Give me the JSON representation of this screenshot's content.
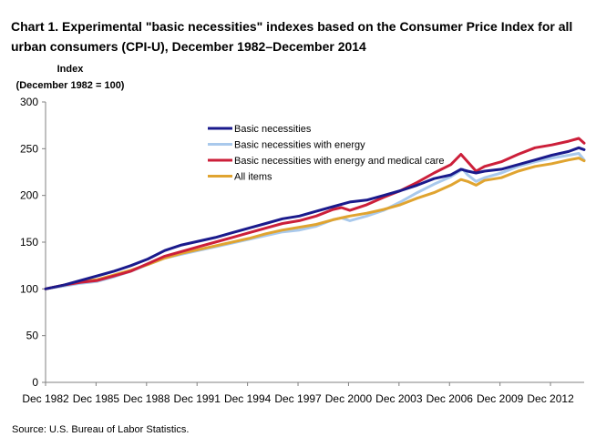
{
  "title": "Chart 1. Experimental  \"basic necessities\" indexes based on the Consumer Price Index for all urban consumers (CPI-U), December 1982–December 2014",
  "source": "Source: U.S. Bureau of Labor Statistics.",
  "chart_data": {
    "type": "line",
    "title": "Chart 1. Experimental  \"basic necessities\" indexes based on the Consumer Price Index for all urban consumers (CPI-U), December 1982–December 2014",
    "ylabel": [
      "Index",
      "(December 1982 = 100)"
    ],
    "xlabel": "",
    "ylim": [
      0,
      300
    ],
    "xlim": [
      1982.92,
      2014.92
    ],
    "yticks": [
      0,
      50,
      100,
      150,
      200,
      250,
      300
    ],
    "xtick_labels": [
      "Dec 1982",
      "Dec 1985",
      "Dec 1988",
      "Dec 1991",
      "Dec 1994",
      "Dec 1997",
      "Dec 2000",
      "Dec 2003",
      "Dec 2006",
      "Dec 2009",
      "Dec 2012"
    ],
    "xtick_years": [
      1982.92,
      1985.92,
      1988.92,
      1991.92,
      1994.92,
      1997.92,
      2000.92,
      2003.92,
      2006.92,
      2009.92,
      2012.92
    ],
    "grid": false,
    "legend_position": "top-center",
    "series": [
      {
        "name": "Basic necessities",
        "color": "#1a1a8c",
        "points": [
          [
            1982.92,
            100
          ],
          [
            1984,
            104
          ],
          [
            1985,
            109
          ],
          [
            1986,
            114
          ],
          [
            1987,
            119
          ],
          [
            1988,
            125
          ],
          [
            1989,
            132
          ],
          [
            1990,
            141
          ],
          [
            1991,
            147
          ],
          [
            1992,
            151
          ],
          [
            1993,
            155
          ],
          [
            1994,
            160
          ],
          [
            1995,
            165
          ],
          [
            1996,
            170
          ],
          [
            1997,
            175
          ],
          [
            1998,
            178
          ],
          [
            1999,
            183
          ],
          [
            2000,
            188
          ],
          [
            2001,
            193
          ],
          [
            2002,
            195
          ],
          [
            2003,
            200
          ],
          [
            2004,
            205
          ],
          [
            2005,
            211
          ],
          [
            2006,
            218
          ],
          [
            2007,
            222
          ],
          [
            2007.6,
            228
          ],
          [
            2008,
            226
          ],
          [
            2008.5,
            224
          ],
          [
            2009,
            226
          ],
          [
            2010,
            228
          ],
          [
            2011,
            233
          ],
          [
            2012,
            238
          ],
          [
            2013,
            243
          ],
          [
            2014,
            247
          ],
          [
            2014.6,
            251
          ],
          [
            2014.92,
            249
          ]
        ]
      },
      {
        "name": "Basic necessities with energy",
        "color": "#a9c9ec",
        "points": [
          [
            1982.92,
            100
          ],
          [
            1984,
            103
          ],
          [
            1985,
            106
          ],
          [
            1986,
            108
          ],
          [
            1987,
            113
          ],
          [
            1988,
            119
          ],
          [
            1989,
            126
          ],
          [
            1990,
            133
          ],
          [
            1991,
            137
          ],
          [
            1992,
            141
          ],
          [
            1993,
            145
          ],
          [
            1994,
            149
          ],
          [
            1995,
            153
          ],
          [
            1996,
            157
          ],
          [
            1997,
            161
          ],
          [
            1998,
            163
          ],
          [
            1999,
            167
          ],
          [
            2000,
            174
          ],
          [
            2000.5,
            176
          ],
          [
            2001,
            173
          ],
          [
            2002,
            178
          ],
          [
            2003,
            184
          ],
          [
            2004,
            193
          ],
          [
            2005,
            203
          ],
          [
            2006,
            212
          ],
          [
            2007,
            220
          ],
          [
            2007.7,
            228
          ],
          [
            2008,
            222
          ],
          [
            2008.5,
            215
          ],
          [
            2009,
            219
          ],
          [
            2010,
            224
          ],
          [
            2011,
            231
          ],
          [
            2012,
            236
          ],
          [
            2013,
            240
          ],
          [
            2014,
            243
          ],
          [
            2014.6,
            245
          ],
          [
            2014.92,
            238
          ]
        ]
      },
      {
        "name": "Basic necessities with energy and medical care",
        "color": "#cc1f3a",
        "points": [
          [
            1982.92,
            100
          ],
          [
            1984,
            104
          ],
          [
            1985,
            107
          ],
          [
            1986,
            109
          ],
          [
            1987,
            114
          ],
          [
            1988,
            119
          ],
          [
            1989,
            127
          ],
          [
            1990,
            135
          ],
          [
            1991,
            140
          ],
          [
            1992,
            145
          ],
          [
            1993,
            150
          ],
          [
            1994,
            155
          ],
          [
            1995,
            160
          ],
          [
            1996,
            165
          ],
          [
            1997,
            170
          ],
          [
            1998,
            173
          ],
          [
            1999,
            178
          ],
          [
            2000,
            185
          ],
          [
            2000.5,
            187
          ],
          [
            2001,
            184
          ],
          [
            2002,
            190
          ],
          [
            2003,
            198
          ],
          [
            2004,
            205
          ],
          [
            2005,
            214
          ],
          [
            2006,
            224
          ],
          [
            2007,
            233
          ],
          [
            2007.6,
            244
          ],
          [
            2008,
            236
          ],
          [
            2008.5,
            226
          ],
          [
            2009,
            231
          ],
          [
            2010,
            236
          ],
          [
            2011,
            244
          ],
          [
            2012,
            251
          ],
          [
            2013,
            254
          ],
          [
            2014,
            258
          ],
          [
            2014.6,
            261
          ],
          [
            2014.92,
            256
          ]
        ]
      },
      {
        "name": "All items",
        "color": "#e0a430",
        "points": [
          [
            1982.92,
            100
          ],
          [
            1984,
            104
          ],
          [
            1985,
            108
          ],
          [
            1986,
            110
          ],
          [
            1987,
            115
          ],
          [
            1988,
            120
          ],
          [
            1989,
            126
          ],
          [
            1990,
            133
          ],
          [
            1991,
            138
          ],
          [
            1992,
            142
          ],
          [
            1993,
            146
          ],
          [
            1994,
            150
          ],
          [
            1995,
            154
          ],
          [
            1996,
            159
          ],
          [
            1997,
            163
          ],
          [
            1998,
            166
          ],
          [
            1999,
            169
          ],
          [
            2000,
            174
          ],
          [
            2001,
            178
          ],
          [
            2002,
            181
          ],
          [
            2003,
            185
          ],
          [
            2004,
            190
          ],
          [
            2005,
            197
          ],
          [
            2006,
            203
          ],
          [
            2007,
            211
          ],
          [
            2007.6,
            217
          ],
          [
            2008,
            215
          ],
          [
            2008.5,
            211
          ],
          [
            2009,
            216
          ],
          [
            2010,
            219
          ],
          [
            2011,
            226
          ],
          [
            2012,
            231
          ],
          [
            2013,
            234
          ],
          [
            2014,
            238
          ],
          [
            2014.6,
            240
          ],
          [
            2014.92,
            237
          ]
        ]
      }
    ]
  }
}
